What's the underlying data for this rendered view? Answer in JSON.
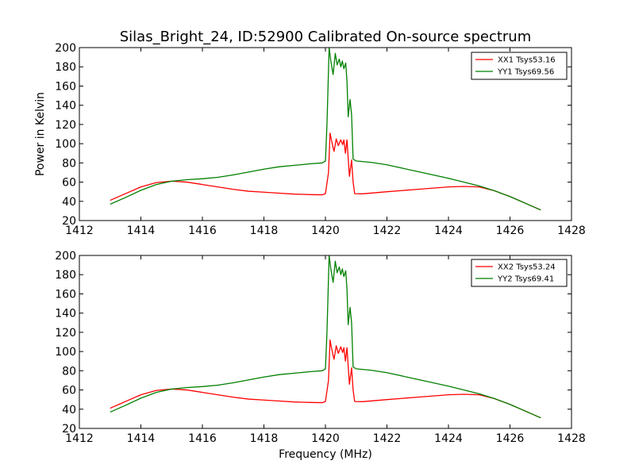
{
  "title": "Silas_Bright_24, ID:52900 Calibrated On-source spectrum",
  "chart_data": [
    {
      "type": "line",
      "title": "Silas_Bright_24, ID:52900 Calibrated On-source spectrum",
      "xlabel": "",
      "ylabel": "Power in Kelvin",
      "xlim": [
        1412,
        1428
      ],
      "ylim": [
        20,
        200
      ],
      "xticks": [
        1412,
        1414,
        1416,
        1418,
        1420,
        1422,
        1424,
        1426,
        1428
      ],
      "yticks": [
        20,
        40,
        60,
        80,
        100,
        120,
        140,
        160,
        180,
        200
      ],
      "grid": false,
      "legend_position": "top-right",
      "series": [
        {
          "name": "XX1 Tsys53.16",
          "color": "#ff0000",
          "points": [
            [
              1413.0,
              41
            ],
            [
              1413.5,
              48
            ],
            [
              1414.0,
              55
            ],
            [
              1414.5,
              59.5
            ],
            [
              1415.0,
              61
            ],
            [
              1415.5,
              60
            ],
            [
              1416.0,
              57.5
            ],
            [
              1416.5,
              55
            ],
            [
              1417.0,
              52.5
            ],
            [
              1417.5,
              50.5
            ],
            [
              1418.0,
              49.5
            ],
            [
              1418.5,
              48.5
            ],
            [
              1419.0,
              47.5
            ],
            [
              1419.5,
              47
            ],
            [
              1419.9,
              46.8
            ],
            [
              1420.0,
              48
            ],
            [
              1420.1,
              70
            ],
            [
              1420.15,
              111
            ],
            [
              1420.22,
              100
            ],
            [
              1420.28,
              92
            ],
            [
              1420.35,
              105
            ],
            [
              1420.42,
              98
            ],
            [
              1420.5,
              104
            ],
            [
              1420.56,
              99
            ],
            [
              1420.6,
              104
            ],
            [
              1420.65,
              90
            ],
            [
              1420.7,
              104
            ],
            [
              1420.78,
              66
            ],
            [
              1420.85,
              83
            ],
            [
              1420.9,
              60
            ],
            [
              1420.95,
              48
            ],
            [
              1421.2,
              47.8
            ],
            [
              1422.0,
              50
            ],
            [
              1423.0,
              52.5
            ],
            [
              1424.0,
              55
            ],
            [
              1424.5,
              55.5
            ],
            [
              1425.0,
              55
            ],
            [
              1425.5,
              51
            ],
            [
              1426.0,
              45
            ],
            [
              1426.5,
              38
            ],
            [
              1427.0,
              31
            ]
          ]
        },
        {
          "name": "YY1 Tsys69.56",
          "color": "#008000",
          "points": [
            [
              1413.0,
              37
            ],
            [
              1413.5,
              44
            ],
            [
              1414.0,
              51.5
            ],
            [
              1414.5,
              57.5
            ],
            [
              1415.0,
              61
            ],
            [
              1415.5,
              62.5
            ],
            [
              1416.0,
              63.5
            ],
            [
              1416.5,
              65
            ],
            [
              1417.0,
              67.5
            ],
            [
              1417.5,
              70.5
            ],
            [
              1418.0,
              73.5
            ],
            [
              1418.5,
              76
            ],
            [
              1419.0,
              77.5
            ],
            [
              1419.5,
              79
            ],
            [
              1419.9,
              80
            ],
            [
              1420.0,
              82
            ],
            [
              1420.05,
              120
            ],
            [
              1420.12,
              200
            ],
            [
              1420.18,
              185
            ],
            [
              1420.25,
              172
            ],
            [
              1420.32,
              194
            ],
            [
              1420.38,
              182
            ],
            [
              1420.45,
              188
            ],
            [
              1420.5,
              180
            ],
            [
              1420.55,
              186
            ],
            [
              1420.6,
              178
            ],
            [
              1420.66,
              184
            ],
            [
              1420.7,
              165
            ],
            [
              1420.74,
              128
            ],
            [
              1420.8,
              146
            ],
            [
              1420.85,
              130
            ],
            [
              1420.9,
              84
            ],
            [
              1421.0,
              82
            ],
            [
              1421.5,
              80.5
            ],
            [
              1422.0,
              78
            ],
            [
              1423.0,
              71
            ],
            [
              1424.0,
              64
            ],
            [
              1425.0,
              56
            ],
            [
              1425.5,
              51
            ],
            [
              1426.0,
              45
            ],
            [
              1426.5,
              38
            ],
            [
              1427.0,
              31
            ]
          ]
        }
      ]
    },
    {
      "type": "line",
      "title": "",
      "xlabel": "Frequency (MHz)",
      "ylabel": "",
      "xlim": [
        1412,
        1428
      ],
      "ylim": [
        20,
        200
      ],
      "xticks": [
        1412,
        1414,
        1416,
        1418,
        1420,
        1422,
        1424,
        1426,
        1428
      ],
      "yticks": [
        20,
        40,
        60,
        80,
        100,
        120,
        140,
        160,
        180,
        200
      ],
      "grid": false,
      "legend_position": "top-right",
      "series": [
        {
          "name": "XX2 Tsys53.24",
          "color": "#ff0000",
          "points": [
            [
              1413.0,
              41
            ],
            [
              1413.5,
              48
            ],
            [
              1414.0,
              55
            ],
            [
              1414.5,
              59.5
            ],
            [
              1415.0,
              61
            ],
            [
              1415.5,
              60
            ],
            [
              1416.0,
              57.5
            ],
            [
              1416.5,
              55
            ],
            [
              1417.0,
              52.5
            ],
            [
              1417.5,
              50.5
            ],
            [
              1418.0,
              49.5
            ],
            [
              1418.5,
              48.5
            ],
            [
              1419.0,
              47.5
            ],
            [
              1419.5,
              47
            ],
            [
              1419.9,
              46.8
            ],
            [
              1420.0,
              48
            ],
            [
              1420.1,
              70
            ],
            [
              1420.15,
              112
            ],
            [
              1420.22,
              100
            ],
            [
              1420.28,
              92
            ],
            [
              1420.35,
              106
            ],
            [
              1420.42,
              98
            ],
            [
              1420.5,
              105
            ],
            [
              1420.56,
              99
            ],
            [
              1420.6,
              104
            ],
            [
              1420.65,
              90
            ],
            [
              1420.7,
              104
            ],
            [
              1420.78,
              66
            ],
            [
              1420.85,
              83
            ],
            [
              1420.9,
              60
            ],
            [
              1420.95,
              48
            ],
            [
              1421.2,
              47.8
            ],
            [
              1422.0,
              50
            ],
            [
              1423.0,
              52.5
            ],
            [
              1424.0,
              55
            ],
            [
              1424.5,
              55.5
            ],
            [
              1425.0,
              55
            ],
            [
              1425.5,
              51
            ],
            [
              1426.0,
              45
            ],
            [
              1426.5,
              38
            ],
            [
              1427.0,
              31
            ]
          ]
        },
        {
          "name": "YY2 Tsys69.41",
          "color": "#008000",
          "points": [
            [
              1413.0,
              37
            ],
            [
              1413.5,
              44
            ],
            [
              1414.0,
              51.5
            ],
            [
              1414.5,
              57.5
            ],
            [
              1415.0,
              61
            ],
            [
              1415.5,
              62.5
            ],
            [
              1416.0,
              63.5
            ],
            [
              1416.5,
              65
            ],
            [
              1417.0,
              67.5
            ],
            [
              1417.5,
              70.5
            ],
            [
              1418.0,
              73.5
            ],
            [
              1418.5,
              76
            ],
            [
              1419.0,
              77.5
            ],
            [
              1419.5,
              79
            ],
            [
              1419.9,
              80
            ],
            [
              1420.0,
              82
            ],
            [
              1420.05,
              120
            ],
            [
              1420.12,
              200
            ],
            [
              1420.18,
              185
            ],
            [
              1420.25,
              172
            ],
            [
              1420.32,
              194
            ],
            [
              1420.38,
              182
            ],
            [
              1420.45,
              188
            ],
            [
              1420.5,
              180
            ],
            [
              1420.55,
              186
            ],
            [
              1420.6,
              178
            ],
            [
              1420.66,
              184
            ],
            [
              1420.7,
              165
            ],
            [
              1420.74,
              128
            ],
            [
              1420.8,
              146
            ],
            [
              1420.85,
              130
            ],
            [
              1420.9,
              84
            ],
            [
              1421.0,
              82
            ],
            [
              1421.5,
              80.5
            ],
            [
              1422.0,
              78
            ],
            [
              1423.0,
              71
            ],
            [
              1424.0,
              64
            ],
            [
              1425.0,
              56
            ],
            [
              1425.5,
              51
            ],
            [
              1426.0,
              45
            ],
            [
              1426.5,
              38
            ],
            [
              1427.0,
              31
            ]
          ]
        }
      ]
    }
  ]
}
